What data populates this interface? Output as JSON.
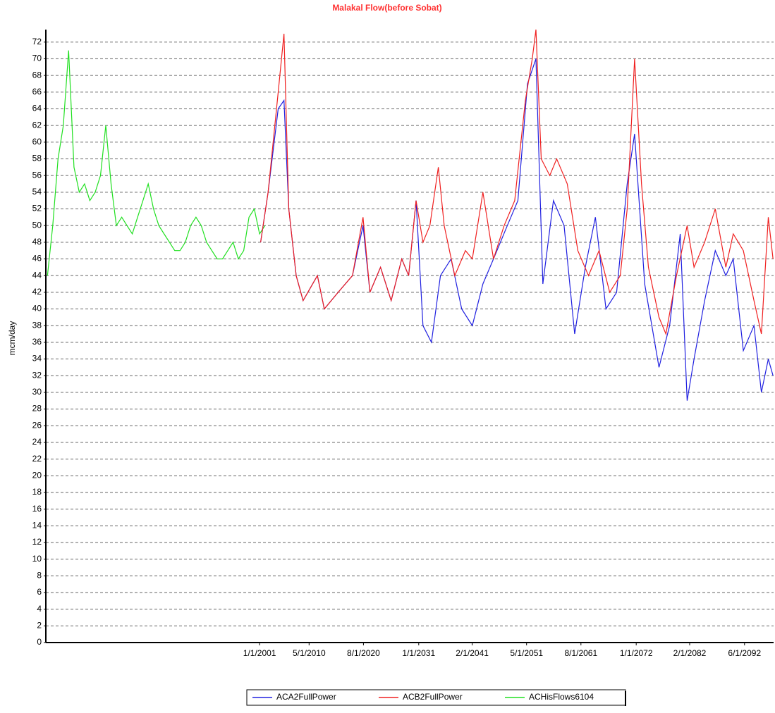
{
  "chart_data": {
    "type": "line",
    "title": "Malakal Flow(before Sobat)",
    "y_label": "mcm/day",
    "xlim": [
      1960.7,
      2097.9
    ],
    "ylim": [
      0,
      73.5
    ],
    "xticks": [
      {
        "value": 2001.0,
        "label": "1/1/2001"
      },
      {
        "value": 2010.33,
        "label": "5/1/2010"
      },
      {
        "value": 2020.58,
        "label": "8/1/2020"
      },
      {
        "value": 2031.0,
        "label": "1/1/2031"
      },
      {
        "value": 2041.08,
        "label": "2/1/2041"
      },
      {
        "value": 2051.33,
        "label": "5/1/2051"
      },
      {
        "value": 2061.58,
        "label": "8/1/2061"
      },
      {
        "value": 2072.0,
        "label": "1/1/2072"
      },
      {
        "value": 2082.08,
        "label": "2/1/2082"
      },
      {
        "value": 2092.42,
        "label": "6/1/2092"
      }
    ],
    "yticks": [
      0,
      2,
      4,
      6,
      8,
      10,
      12,
      14,
      16,
      18,
      20,
      22,
      24,
      26,
      28,
      30,
      32,
      34,
      36,
      38,
      40,
      42,
      44,
      46,
      48,
      50,
      52,
      54,
      56,
      58,
      60,
      62,
      64,
      66,
      68,
      70,
      72
    ],
    "grid": true,
    "legend": "bottom",
    "series": [
      {
        "name": "ACA2FullPower",
        "color": "#2020e0",
        "x": [
          2001.2,
          2002.6,
          2004.5,
          2005.6,
          2006.5,
          2007.9,
          2009.2,
          2011.9,
          2013.2,
          2015.8,
          2018.5,
          2020.5,
          2021.8,
          2023.8,
          2025.8,
          2027.8,
          2029.1,
          2030.5,
          2031.8,
          2033.4,
          2035.1,
          2037.1,
          2039.1,
          2041.1,
          2043.1,
          2045.1,
          2047.7,
          2049.7,
          2051.5,
          2053.1,
          2054.4,
          2056.4,
          2058.4,
          2060.4,
          2062.4,
          2064.3,
          2066.3,
          2068.3,
          2070.3,
          2071.7,
          2073.6,
          2076.3,
          2078.3,
          2080.3,
          2081.6,
          2082.9,
          2084.9,
          2086.9,
          2088.9,
          2090.3,
          2092.2,
          2094.2,
          2095.6,
          2096.9,
          2097.8
        ],
        "values": [
          48,
          54,
          64,
          65,
          52,
          44,
          41,
          44,
          40,
          42,
          44,
          50,
          42,
          45,
          41,
          46,
          44,
          53,
          38,
          36,
          44,
          46,
          40,
          38,
          43,
          46,
          50,
          53,
          67,
          70,
          43,
          53,
          50,
          37,
          45,
          51,
          40,
          42,
          55,
          61,
          43,
          33,
          38,
          49,
          29,
          34,
          41,
          47,
          44,
          46,
          35,
          38,
          30,
          34,
          32
        ]
      },
      {
        "name": "ACB2FullPower",
        "color": "#f02020",
        "x": [
          2001.2,
          2002.6,
          2004.5,
          2005.6,
          2006.5,
          2007.9,
          2009.2,
          2011.9,
          2013.2,
          2015.8,
          2018.5,
          2020.5,
          2021.8,
          2023.8,
          2025.8,
          2027.8,
          2029.1,
          2030.5,
          2031.8,
          2033.1,
          2034.7,
          2035.8,
          2037.8,
          2039.8,
          2041.1,
          2043.1,
          2045.1,
          2047.1,
          2049.1,
          2051.1,
          2052.4,
          2053.1,
          2054.1,
          2055.7,
          2057.0,
          2059.0,
          2061.0,
          2063.0,
          2065.0,
          2067.0,
          2069.0,
          2070.3,
          2071.7,
          2073.0,
          2074.3,
          2076.3,
          2077.6,
          2079.6,
          2081.6,
          2082.9,
          2084.9,
          2086.9,
          2088.9,
          2090.3,
          2092.2,
          2094.2,
          2095.6,
          2096.9,
          2097.8
        ],
        "values": [
          48,
          54,
          66,
          73,
          52,
          44,
          41,
          44,
          40,
          42,
          44,
          51,
          42,
          45,
          41,
          46,
          44,
          53,
          48,
          50,
          57,
          50,
          44,
          47,
          46,
          54,
          46,
          50,
          53,
          65,
          70,
          73.5,
          58,
          56,
          58,
          55,
          47,
          44,
          47,
          42,
          44,
          52,
          70,
          55,
          45,
          39,
          37,
          44,
          50,
          45,
          48,
          52,
          45,
          49,
          47,
          41,
          37,
          51,
          46
        ]
      },
      {
        "name": "ACHisFlows6104",
        "color": "#20e020",
        "x": [
          1961,
          1962,
          1963,
          1964,
          1965,
          1966,
          1967,
          1968,
          1969,
          1970,
          1971,
          1972,
          1973,
          1974,
          1975,
          1976,
          1977,
          1978,
          1979,
          1980,
          1981,
          1982,
          1983,
          1984,
          1985,
          1986,
          1987,
          1988,
          1989,
          1990,
          1991,
          1992,
          1993,
          1994,
          1995,
          1996,
          1997,
          1998,
          1999,
          2000,
          2001,
          2002
        ],
        "values": [
          44,
          50,
          58,
          62,
          71,
          57,
          54,
          55,
          53,
          54,
          56,
          62,
          55,
          50,
          51,
          50,
          49,
          51,
          53,
          55,
          52,
          50,
          49,
          48,
          47,
          47,
          48,
          50,
          51,
          50,
          48,
          47,
          46,
          46,
          47,
          48,
          46,
          47,
          51,
          52,
          49,
          50
        ]
      }
    ]
  }
}
